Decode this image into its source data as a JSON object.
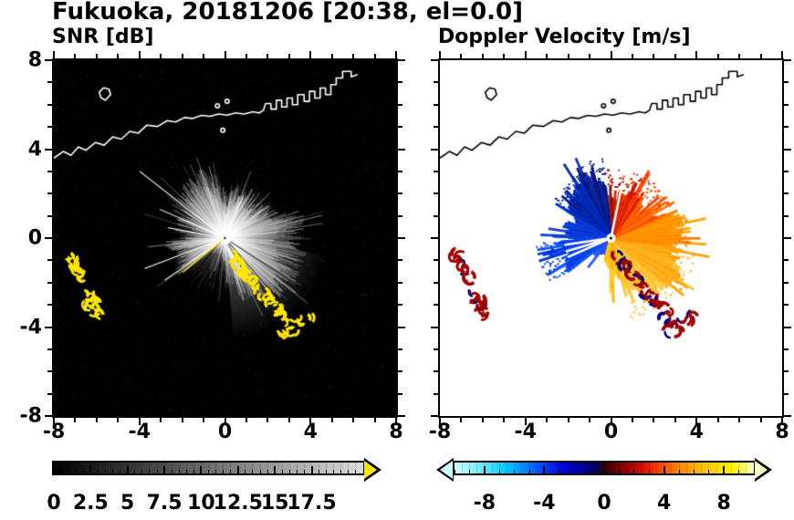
{
  "title": "Fukuoka, 20181206 [20:38, el=0.0]",
  "site": "Fukuoka",
  "date": "20181206",
  "time": "20:38",
  "elevation": "0.0",
  "panels": [
    {
      "id": "snr",
      "title": "SNR [dB]"
    },
    {
      "id": "velocity",
      "title": "Doppler Velocity [m/s]"
    }
  ],
  "axes": {
    "xlim": [
      -8,
      8
    ],
    "ylim": [
      -8,
      8
    ],
    "minor_step": 1,
    "tick_values": [
      -8,
      -4,
      0,
      4,
      8
    ],
    "x_tick_labels": [
      "-8",
      "-4",
      "0",
      "4",
      "8"
    ],
    "y_tick_values": [
      8,
      4,
      0,
      -4,
      -8
    ],
    "y_tick_labels": [
      "8",
      "4",
      "0",
      "-4",
      "-8"
    ]
  },
  "chart_data": [
    {
      "type": "heatmap",
      "panel": "left",
      "title": "SNR [dB]",
      "xlim": [
        -8,
        8
      ],
      "ylim": [
        -8,
        8
      ],
      "xticks": [
        -8,
        -4,
        0,
        4,
        8
      ],
      "yticks": [
        -8,
        -4,
        0,
        4,
        8
      ],
      "background_color": "#000000",
      "radar_center": [
        0,
        0
      ],
      "colorbar": {
        "label": "SNR [dB]",
        "tick_values": [
          0,
          2.5,
          5,
          7.5,
          10,
          12.5,
          15,
          17.5
        ],
        "tick_labels": [
          "0",
          "2.5",
          "5",
          "7.5",
          "10",
          "12.5",
          "15",
          "17.5"
        ],
        "range": [
          0,
          21
        ],
        "minor_step": 0.5,
        "gradient": [
          [
            0,
            "#000000"
          ],
          [
            0.55,
            "#777777"
          ],
          [
            1,
            "#dcdcdc"
          ]
        ],
        "arrow_right": "#ffe600"
      },
      "fills": [
        {
          "a0": -85,
          "a1": -8,
          "r": 4.8,
          "alpha": 0.3
        },
        {
          "a0": 95,
          "a1": 150,
          "r": 3.4,
          "alpha": 0.2
        },
        {
          "a0": 25,
          "a1": 75,
          "r": 3.0,
          "alpha": 0.16
        },
        {
          "a0": 150,
          "a1": 215,
          "r": 2.6,
          "alpha": 0.1
        }
      ],
      "spokes": [
        {
          "a": 143,
          "len": 5.0
        },
        {
          "a": 157,
          "len": 3.3
        },
        {
          "a": 170,
          "len": 2.7
        },
        {
          "a": 200,
          "len": 4.0
        },
        {
          "a": 214,
          "len": 3.4
        },
        {
          "a": 66,
          "len": 2.1
        }
      ],
      "yellow_spoke": {
        "a": 218,
        "len": 2.5
      },
      "dark_spokes": [
        -32,
        -48,
        -60
      ],
      "echo_color": "#ffe600",
      "coastline_color": "#ffffff"
    },
    {
      "type": "heatmap",
      "panel": "right",
      "title": "Doppler Velocity [m/s]",
      "xlim": [
        -8,
        8
      ],
      "ylim": [
        -8,
        8
      ],
      "xticks": [
        -8,
        -4,
        0,
        4,
        8
      ],
      "yticks": [
        -8,
        -4,
        0,
        4,
        8
      ],
      "background_color": "#ffffff",
      "radar_center": [
        0,
        0
      ],
      "colorbar": {
        "label": "Doppler Velocity [m/s]",
        "tick_values": [
          -8,
          -4,
          0,
          4,
          8
        ],
        "tick_labels": [
          "-8",
          "-4",
          "0",
          "4",
          "8"
        ],
        "range": [
          -10,
          10
        ],
        "minor_step": 1,
        "segment_step": 0.5,
        "gradient": [
          [
            0,
            "#ccffff"
          ],
          [
            0.06,
            "#8ef2ff"
          ],
          [
            0.12,
            "#45e0ff"
          ],
          [
            0.18,
            "#00c0ff"
          ],
          [
            0.24,
            "#0080ff"
          ],
          [
            0.3,
            "#0040ff"
          ],
          [
            0.36,
            "#0000e0"
          ],
          [
            0.42,
            "#0000a0"
          ],
          [
            0.47,
            "#000060"
          ],
          [
            0.5,
            "#300008"
          ],
          [
            0.54,
            "#700000"
          ],
          [
            0.58,
            "#a00000"
          ],
          [
            0.63,
            "#d80f00"
          ],
          [
            0.69,
            "#ff4800"
          ],
          [
            0.75,
            "#ff8400"
          ],
          [
            0.81,
            "#ffb300"
          ],
          [
            0.87,
            "#ffd900"
          ],
          [
            0.93,
            "#fff200"
          ],
          [
            1,
            "#ffffc8"
          ]
        ],
        "arrow_left": "#ccffff",
        "arrow_right": "#ffffc8"
      },
      "sectors": [
        {
          "a0": -75,
          "a1": -38,
          "len": 2.7,
          "var": 1.5,
          "density": 0.96,
          "colors": [
            "#ffc633",
            "#ffd24d",
            "#ffbb26"
          ]
        },
        {
          "a0": -38,
          "a1": -8,
          "len": 2.9,
          "var": 1.6,
          "density": 0.96,
          "colors": [
            "#ffb01a",
            "#ffc433",
            "#ff9d0d"
          ]
        },
        {
          "a0": -8,
          "a1": 22,
          "len": 2.5,
          "var": 1.5,
          "density": 0.95,
          "colors": [
            "#ff9100",
            "#ffa600",
            "#ff7b00"
          ]
        },
        {
          "a0": 22,
          "a1": 52,
          "len": 2.1,
          "var": 1.3,
          "density": 0.93,
          "colors": [
            "#ff5e00",
            "#ff7700",
            "#f04400"
          ]
        },
        {
          "a0": 52,
          "a1": 78,
          "len": 2.0,
          "var": 1.2,
          "density": 0.9,
          "colors": [
            "#e62800",
            "#cc1400",
            "#ff4400"
          ]
        },
        {
          "a0": 78,
          "a1": 96,
          "len": 2.1,
          "var": 1.3,
          "density": 0.9,
          "colors": [
            "#b41200",
            "#8c0a00",
            "#d93000"
          ]
        },
        {
          "a0": 96,
          "a1": 118,
          "len": 2.5,
          "var": 1.4,
          "density": 0.93,
          "colors": [
            "#0a1e8c",
            "#001478",
            "#1432b4"
          ]
        },
        {
          "a0": 118,
          "a1": 150,
          "len": 2.1,
          "var": 1.3,
          "density": 0.85,
          "colors": [
            "#0a2aa8",
            "#0033cc",
            "#001a94"
          ]
        },
        {
          "a0": 150,
          "a1": 184,
          "len": 1.4,
          "var": 1.1,
          "density": 0.5,
          "colors": [
            "#1040e0",
            "#0033cc"
          ]
        },
        {
          "a0": 184,
          "a1": 217,
          "len": 2.4,
          "var": 1.0,
          "density": 0.95,
          "colors": [
            "#0d47e8",
            "#1155ff",
            "#0033dd"
          ]
        },
        {
          "a0": 217,
          "a1": 252,
          "len": 1.0,
          "var": 1.0,
          "density": 0.2,
          "colors": [
            "#2a5cff",
            "#1040e0"
          ]
        },
        {
          "a0": 252,
          "a1": 285,
          "len": 1.1,
          "var": 1.2,
          "density": 0.35,
          "colors": [
            "#ffb300",
            "#ffcc33"
          ]
        }
      ],
      "white_spokes": [
        188,
        196,
        203,
        78
      ],
      "echo_colors": [
        "#a00000",
        "#000080"
      ],
      "coastline_color": "#000000"
    }
  ],
  "geo": {
    "coastline": [
      [
        -8,
        3.6
      ],
      [
        -7.55,
        3.9
      ],
      [
        -7.2,
        3.72
      ],
      [
        -6.85,
        4.1
      ],
      [
        -6.5,
        3.95
      ],
      [
        -6.05,
        4.3
      ],
      [
        -5.65,
        4.18
      ],
      [
        -5.25,
        4.55
      ],
      [
        -4.85,
        4.45
      ],
      [
        -4.45,
        4.8
      ],
      [
        -4.05,
        4.72
      ],
      [
        -3.65,
        5.08
      ],
      [
        -3.15,
        5.02
      ],
      [
        -2.7,
        5.28
      ],
      [
        -2.3,
        5.22
      ],
      [
        -1.9,
        5.42
      ],
      [
        -1.5,
        5.38
      ],
      [
        -1.1,
        5.52
      ],
      [
        -0.7,
        5.48
      ],
      [
        -0.3,
        5.58
      ],
      [
        0.1,
        5.53
      ],
      [
        0.5,
        5.63
      ],
      [
        0.9,
        5.58
      ],
      [
        1.3,
        5.68
      ],
      [
        1.6,
        5.63
      ],
      [
        1.8,
        5.75
      ],
      [
        1.9,
        6.05
      ],
      [
        2.15,
        6.05
      ],
      [
        2.15,
        5.8
      ],
      [
        2.4,
        5.8
      ],
      [
        2.4,
        6.2
      ],
      [
        2.65,
        6.2
      ],
      [
        2.65,
        5.9
      ],
      [
        2.9,
        5.9
      ],
      [
        2.9,
        6.3
      ],
      [
        3.15,
        6.3
      ],
      [
        3.15,
        6.0
      ],
      [
        3.4,
        6.0
      ],
      [
        3.4,
        6.45
      ],
      [
        3.7,
        6.45
      ],
      [
        3.7,
        6.15
      ],
      [
        3.95,
        6.15
      ],
      [
        3.95,
        6.6
      ],
      [
        4.2,
        6.6
      ],
      [
        4.2,
        6.3
      ],
      [
        4.45,
        6.3
      ],
      [
        4.45,
        6.75
      ],
      [
        4.7,
        6.75
      ],
      [
        4.7,
        6.45
      ],
      [
        4.95,
        6.45
      ],
      [
        4.95,
        6.9
      ],
      [
        5.2,
        6.9
      ],
      [
        5.2,
        7.2
      ],
      [
        5.5,
        7.2
      ],
      [
        5.5,
        7.5
      ],
      [
        5.9,
        7.5
      ],
      [
        5.9,
        7.25
      ],
      [
        6.2,
        7.35
      ]
    ],
    "island": [
      [
        -5.6,
        6.2
      ],
      [
        -5.35,
        6.45
      ],
      [
        -5.42,
        6.7
      ],
      [
        -5.68,
        6.76
      ],
      [
        -5.88,
        6.56
      ],
      [
        -5.8,
        6.32
      ],
      [
        -5.6,
        6.2
      ]
    ],
    "coast_marks": [
      [
        -0.35,
        5.95
      ],
      [
        0.1,
        6.15
      ],
      [
        -0.1,
        4.85
      ]
    ],
    "echoes_west": [
      [
        -7.3,
        -0.75
      ],
      [
        -7.12,
        -0.95
      ],
      [
        -7.0,
        -1.2
      ],
      [
        -6.95,
        -1.5
      ],
      [
        -6.78,
        -1.42
      ],
      [
        -6.7,
        -1.72
      ],
      [
        -6.45,
        -2.5
      ],
      [
        -6.3,
        -2.72
      ],
      [
        -6.12,
        -2.9
      ],
      [
        -6.3,
        -3.05
      ],
      [
        -6.02,
        -3.2
      ],
      [
        -5.92,
        -3.38
      ]
    ],
    "echoes_arc": [
      [
        0.25,
        -0.8
      ],
      [
        0.45,
        -1.0
      ],
      [
        0.62,
        -1.18
      ],
      [
        0.8,
        -1.35
      ],
      [
        0.95,
        -1.55
      ],
      [
        1.1,
        -1.75
      ],
      [
        1.25,
        -1.95
      ],
      [
        1.45,
        -2.15
      ],
      [
        1.62,
        -2.35
      ],
      [
        1.8,
        -2.55
      ],
      [
        2.0,
        -2.75
      ],
      [
        2.2,
        -2.95
      ],
      [
        2.45,
        -3.15
      ],
      [
        2.65,
        -3.35
      ],
      [
        2.5,
        -3.6
      ],
      [
        2.75,
        -3.8
      ],
      [
        2.95,
        -4.0
      ],
      [
        2.72,
        -4.15
      ],
      [
        3.1,
        -4.25
      ],
      [
        3.3,
        -3.5
      ],
      [
        3.55,
        -3.68
      ],
      [
        3.82,
        -3.55
      ]
    ]
  }
}
